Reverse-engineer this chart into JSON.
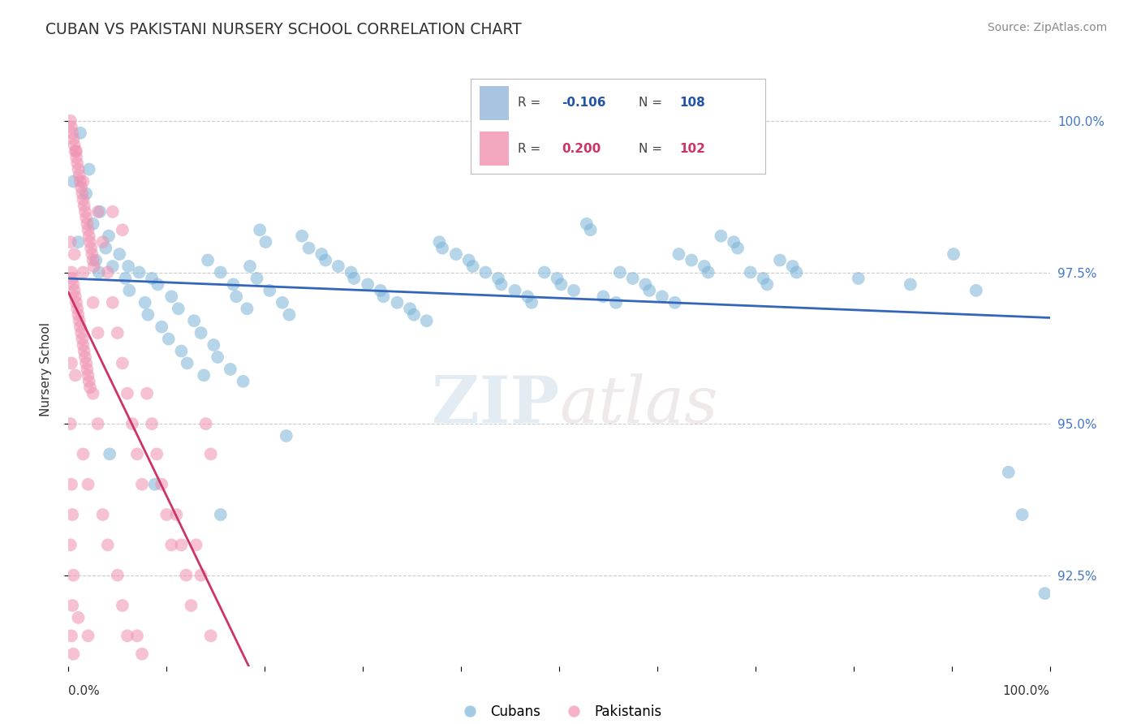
{
  "title": "CUBAN VS PAKISTANI NURSERY SCHOOL CORRELATION CHART",
  "source": "Source: ZipAtlas.com",
  "ylabel": "Nursery School",
  "ytick_vals": [
    92.5,
    95.0,
    97.5,
    100.0
  ],
  "xlim": [
    0.0,
    100.0
  ],
  "ylim": [
    91.0,
    100.8
  ],
  "legend_cubans": "Cubans",
  "legend_pakistanis": "Pakistanis",
  "blue_color": "#7ab4d8",
  "pink_color": "#f090b0",
  "blue_line_color": "#3366bb",
  "pink_line_color": "#cc3366",
  "background_color": "#ffffff",
  "grid_color": "#cccccc",
  "title_color": "#333333",
  "watermark_zip": "ZIP",
  "watermark_atlas": "atlas",
  "blue_dots": [
    [
      1.2,
      99.8
    ],
    [
      2.1,
      99.2
    ],
    [
      0.5,
      99.0
    ],
    [
      1.8,
      98.8
    ],
    [
      3.2,
      98.5
    ],
    [
      2.5,
      98.3
    ],
    [
      4.1,
      98.1
    ],
    [
      1.0,
      98.0
    ],
    [
      3.8,
      97.9
    ],
    [
      5.2,
      97.8
    ],
    [
      2.8,
      97.7
    ],
    [
      6.1,
      97.6
    ],
    [
      4.5,
      97.6
    ],
    [
      7.2,
      97.5
    ],
    [
      3.1,
      97.5
    ],
    [
      8.5,
      97.4
    ],
    [
      5.8,
      97.4
    ],
    [
      9.1,
      97.3
    ],
    [
      6.2,
      97.2
    ],
    [
      10.5,
      97.1
    ],
    [
      7.8,
      97.0
    ],
    [
      11.2,
      96.9
    ],
    [
      8.1,
      96.8
    ],
    [
      12.8,
      96.7
    ],
    [
      9.5,
      96.6
    ],
    [
      13.5,
      96.5
    ],
    [
      10.2,
      96.4
    ],
    [
      14.8,
      96.3
    ],
    [
      11.5,
      96.2
    ],
    [
      15.2,
      96.1
    ],
    [
      12.1,
      96.0
    ],
    [
      16.5,
      95.9
    ],
    [
      13.8,
      95.8
    ],
    [
      17.8,
      95.7
    ],
    [
      14.2,
      97.7
    ],
    [
      18.5,
      97.6
    ],
    [
      15.5,
      97.5
    ],
    [
      19.2,
      97.4
    ],
    [
      16.8,
      97.3
    ],
    [
      20.5,
      97.2
    ],
    [
      17.1,
      97.1
    ],
    [
      21.8,
      97.0
    ],
    [
      18.2,
      96.9
    ],
    [
      22.5,
      96.8
    ],
    [
      19.5,
      98.2
    ],
    [
      23.8,
      98.1
    ],
    [
      20.1,
      98.0
    ],
    [
      24.5,
      97.9
    ],
    [
      25.8,
      97.8
    ],
    [
      26.2,
      97.7
    ],
    [
      27.5,
      97.6
    ],
    [
      28.8,
      97.5
    ],
    [
      29.1,
      97.4
    ],
    [
      30.5,
      97.3
    ],
    [
      31.8,
      97.2
    ],
    [
      32.1,
      97.1
    ],
    [
      33.5,
      97.0
    ],
    [
      34.8,
      96.9
    ],
    [
      35.2,
      96.8
    ],
    [
      36.5,
      96.7
    ],
    [
      37.8,
      98.0
    ],
    [
      38.1,
      97.9
    ],
    [
      39.5,
      97.8
    ],
    [
      40.8,
      97.7
    ],
    [
      41.2,
      97.6
    ],
    [
      42.5,
      97.5
    ],
    [
      43.8,
      97.4
    ],
    [
      44.1,
      97.3
    ],
    [
      45.5,
      97.2
    ],
    [
      46.8,
      97.1
    ],
    [
      47.2,
      97.0
    ],
    [
      48.5,
      97.5
    ],
    [
      49.8,
      97.4
    ],
    [
      50.2,
      97.3
    ],
    [
      51.5,
      97.2
    ],
    [
      52.8,
      98.3
    ],
    [
      53.2,
      98.2
    ],
    [
      54.5,
      97.1
    ],
    [
      55.8,
      97.0
    ],
    [
      56.2,
      97.5
    ],
    [
      57.5,
      97.4
    ],
    [
      58.8,
      97.3
    ],
    [
      59.2,
      97.2
    ],
    [
      60.5,
      97.1
    ],
    [
      61.8,
      97.0
    ],
    [
      62.2,
      97.8
    ],
    [
      63.5,
      97.7
    ],
    [
      64.8,
      97.6
    ],
    [
      65.2,
      97.5
    ],
    [
      66.5,
      98.1
    ],
    [
      67.8,
      98.0
    ],
    [
      68.2,
      97.9
    ],
    [
      69.5,
      97.5
    ],
    [
      70.8,
      97.4
    ],
    [
      71.2,
      97.3
    ],
    [
      72.5,
      97.7
    ],
    [
      73.8,
      97.6
    ],
    [
      74.2,
      97.5
    ],
    [
      80.5,
      97.4
    ],
    [
      85.8,
      97.3
    ],
    [
      90.2,
      97.8
    ],
    [
      92.5,
      97.2
    ],
    [
      95.8,
      94.2
    ],
    [
      97.2,
      93.5
    ],
    [
      99.5,
      92.2
    ],
    [
      4.2,
      94.5
    ],
    [
      8.8,
      94.0
    ],
    [
      15.5,
      93.5
    ],
    [
      22.2,
      94.8
    ]
  ],
  "pink_dots": [
    [
      0.2,
      100.0
    ],
    [
      0.3,
      99.9
    ],
    [
      0.4,
      99.8
    ],
    [
      0.5,
      99.7
    ],
    [
      0.6,
      99.6
    ],
    [
      0.7,
      99.5
    ],
    [
      0.8,
      99.4
    ],
    [
      0.9,
      99.3
    ],
    [
      1.0,
      99.2
    ],
    [
      1.1,
      99.1
    ],
    [
      1.2,
      99.0
    ],
    [
      1.3,
      98.9
    ],
    [
      1.4,
      98.8
    ],
    [
      1.5,
      98.7
    ],
    [
      1.6,
      98.6
    ],
    [
      1.7,
      98.5
    ],
    [
      1.8,
      98.4
    ],
    [
      1.9,
      98.3
    ],
    [
      2.0,
      98.2
    ],
    [
      2.1,
      98.1
    ],
    [
      2.2,
      98.0
    ],
    [
      2.3,
      97.9
    ],
    [
      2.4,
      97.8
    ],
    [
      2.5,
      97.7
    ],
    [
      2.6,
      97.6
    ],
    [
      0.3,
      97.5
    ],
    [
      0.4,
      97.4
    ],
    [
      0.5,
      97.3
    ],
    [
      0.6,
      97.2
    ],
    [
      0.7,
      97.1
    ],
    [
      0.8,
      97.0
    ],
    [
      0.9,
      96.9
    ],
    [
      1.0,
      96.8
    ],
    [
      1.1,
      96.7
    ],
    [
      1.2,
      96.6
    ],
    [
      1.3,
      96.5
    ],
    [
      1.4,
      96.4
    ],
    [
      1.5,
      96.3
    ],
    [
      1.6,
      96.2
    ],
    [
      1.7,
      96.1
    ],
    [
      1.8,
      96.0
    ],
    [
      1.9,
      95.9
    ],
    [
      2.0,
      95.8
    ],
    [
      2.1,
      95.7
    ],
    [
      2.2,
      95.6
    ],
    [
      3.0,
      98.5
    ],
    [
      3.5,
      98.0
    ],
    [
      4.0,
      97.5
    ],
    [
      4.5,
      97.0
    ],
    [
      5.0,
      96.5
    ],
    [
      5.5,
      96.0
    ],
    [
      6.0,
      95.5
    ],
    [
      6.5,
      95.0
    ],
    [
      7.0,
      94.5
    ],
    [
      7.5,
      94.0
    ],
    [
      8.0,
      95.5
    ],
    [
      8.5,
      95.0
    ],
    [
      9.0,
      94.5
    ],
    [
      9.5,
      94.0
    ],
    [
      10.0,
      93.5
    ],
    [
      10.5,
      93.0
    ],
    [
      11.0,
      93.5
    ],
    [
      11.5,
      93.0
    ],
    [
      12.0,
      92.5
    ],
    [
      12.5,
      92.0
    ],
    [
      13.0,
      93.0
    ],
    [
      13.5,
      92.5
    ],
    [
      14.0,
      95.0
    ],
    [
      14.5,
      94.5
    ],
    [
      0.2,
      95.0
    ],
    [
      0.3,
      94.0
    ],
    [
      0.4,
      93.5
    ],
    [
      0.5,
      92.5
    ],
    [
      2.5,
      95.5
    ],
    [
      3.0,
      95.0
    ],
    [
      1.5,
      94.5
    ],
    [
      2.0,
      94.0
    ],
    [
      3.5,
      93.5
    ],
    [
      4.0,
      93.0
    ],
    [
      5.0,
      92.5
    ],
    [
      5.5,
      92.0
    ],
    [
      6.0,
      91.5
    ],
    [
      0.3,
      91.5
    ],
    [
      0.5,
      91.2
    ],
    [
      1.0,
      91.8
    ],
    [
      2.0,
      91.5
    ],
    [
      7.0,
      91.5
    ],
    [
      7.5,
      91.2
    ],
    [
      1.5,
      97.5
    ],
    [
      2.5,
      97.0
    ],
    [
      3.0,
      96.5
    ],
    [
      0.8,
      99.5
    ],
    [
      1.5,
      99.0
    ],
    [
      0.2,
      98.0
    ],
    [
      0.6,
      97.8
    ],
    [
      4.5,
      98.5
    ],
    [
      5.5,
      98.2
    ],
    [
      0.3,
      96.0
    ],
    [
      0.7,
      95.8
    ],
    [
      14.5,
      91.5
    ],
    [
      0.2,
      93.0
    ],
    [
      0.4,
      92.0
    ]
  ]
}
